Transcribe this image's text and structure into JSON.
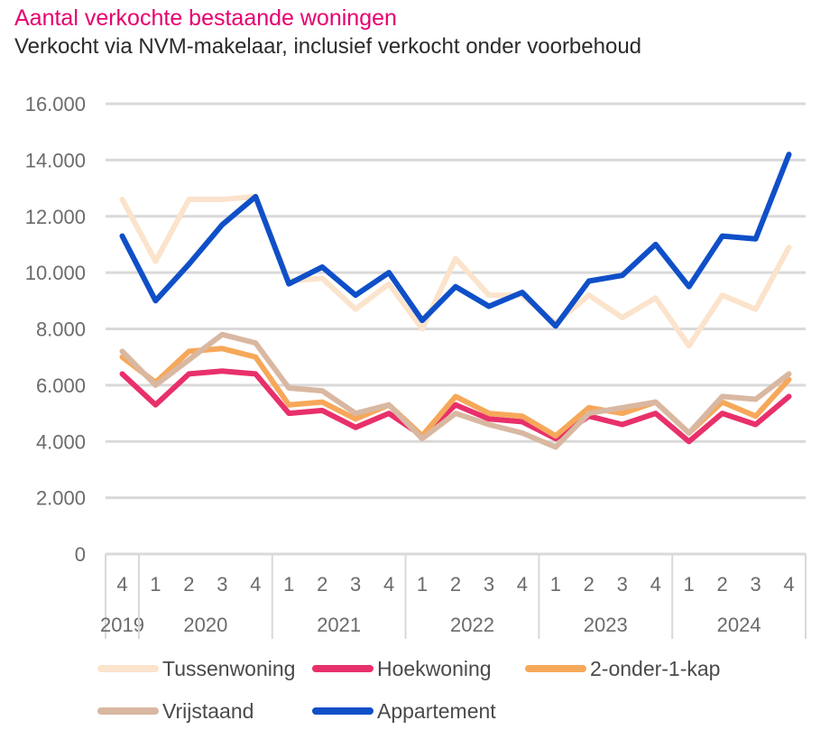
{
  "chart_data": {
    "type": "line",
    "title": "Aantal verkochte bestaande woningen",
    "subtitle": "Verkocht via NVM-makelaar, inclusief verkocht onder voorbehoud",
    "xlabel": "",
    "ylabel": "",
    "ylim": [
      0,
      16000
    ],
    "yticks": [
      0,
      2000,
      4000,
      6000,
      8000,
      10000,
      12000,
      14000,
      16000
    ],
    "ytick_labels": [
      "0",
      "2.000",
      "4.000",
      "6.000",
      "8.000",
      "10.000",
      "12.000",
      "14.000",
      "16.000"
    ],
    "grid": true,
    "legend_position": "bottom",
    "quarters": [
      "4",
      "1",
      "2",
      "3",
      "4",
      "1",
      "2",
      "3",
      "4",
      "1",
      "2",
      "3",
      "4",
      "1",
      "2",
      "3",
      "4",
      "1",
      "2",
      "3",
      "4"
    ],
    "years": [
      {
        "label": "2019",
        "count": 1
      },
      {
        "label": "2020",
        "count": 4
      },
      {
        "label": "2021",
        "count": 4
      },
      {
        "label": "2022",
        "count": 4
      },
      {
        "label": "2023",
        "count": 4
      },
      {
        "label": "2024",
        "count": 4
      }
    ],
    "series": [
      {
        "name": "Tussenwoning",
        "color": "#fbe3cc",
        "values": [
          12600,
          10400,
          12600,
          12600,
          12700,
          9700,
          9800,
          8700,
          9600,
          8000,
          10500,
          9200,
          9200,
          8200,
          9200,
          8400,
          9100,
          7400,
          9200,
          8700,
          10900
        ]
      },
      {
        "name": "Hoekwoning",
        "color": "#e8306a",
        "values": [
          6400,
          5300,
          6400,
          6500,
          6400,
          5000,
          5100,
          4500,
          5000,
          4200,
          5300,
          4800,
          4700,
          4100,
          4900,
          4600,
          5000,
          4000,
          5000,
          4600,
          5600
        ]
      },
      {
        "name": "2-onder-1-kap",
        "color": "#f6a85a",
        "values": [
          7000,
          6100,
          7200,
          7300,
          7000,
          5300,
          5400,
          4800,
          5300,
          4200,
          5600,
          5000,
          4900,
          4200,
          5200,
          5000,
          5400,
          4300,
          5400,
          4900,
          6200
        ]
      },
      {
        "name": "Vrijstaand",
        "color": "#d9b8a2",
        "values": [
          7200,
          6000,
          6900,
          7800,
          7500,
          5900,
          5800,
          5000,
          5300,
          4100,
          5000,
          4600,
          4300,
          3800,
          5000,
          5200,
          5400,
          4300,
          5600,
          5500,
          6400
        ]
      },
      {
        "name": "Appartement",
        "color": "#0f4fc8",
        "values": [
          11300,
          9000,
          10300,
          11700,
          12700,
          9600,
          10200,
          9200,
          10000,
          8300,
          9500,
          8800,
          9300,
          8100,
          9700,
          9900,
          11000,
          9500,
          11300,
          11200,
          14200
        ]
      }
    ]
  }
}
